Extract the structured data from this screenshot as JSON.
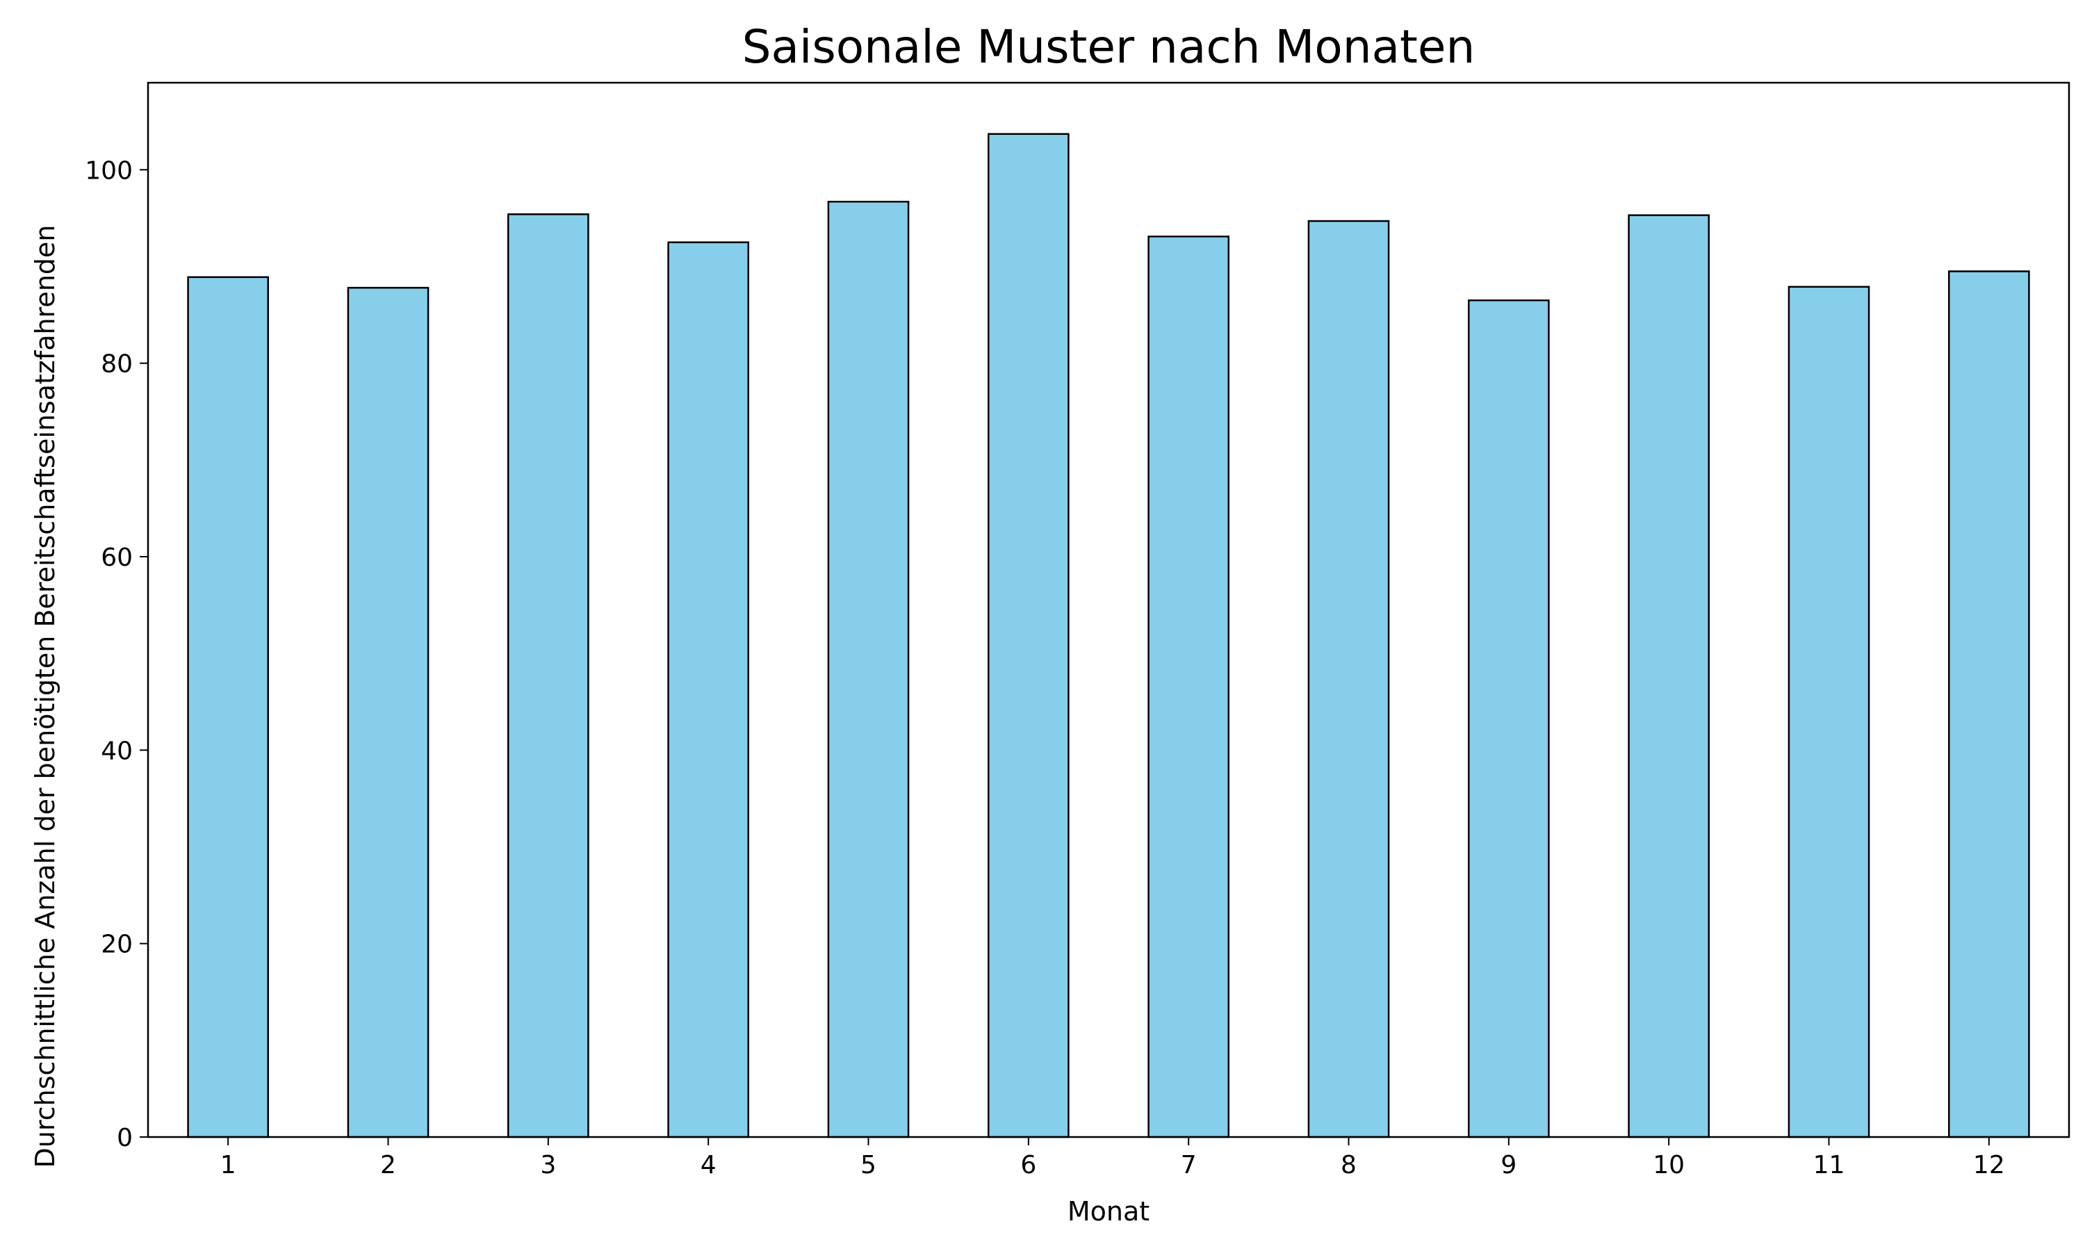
{
  "chart_data": {
    "type": "bar",
    "title": "Saisonale Muster nach Monaten",
    "xlabel": "Monat",
    "ylabel": "Durchschnittliche Anzahl der benötigten Bereitschaftseinsatzfahrenden",
    "categories": [
      "1",
      "2",
      "3",
      "4",
      "5",
      "6",
      "7",
      "8",
      "9",
      "10",
      "11",
      "12"
    ],
    "values": [
      88.9,
      87.8,
      95.4,
      92.5,
      96.7,
      103.7,
      93.1,
      94.7,
      86.5,
      95.3,
      87.9,
      89.5
    ],
    "ylim": [
      0,
      109
    ],
    "yticks": [
      0,
      20,
      40,
      60,
      80,
      100
    ],
    "grid": false,
    "legend": "none",
    "colors": {
      "bar_fill": "#87ceeb",
      "bar_edge": "#000000"
    }
  }
}
